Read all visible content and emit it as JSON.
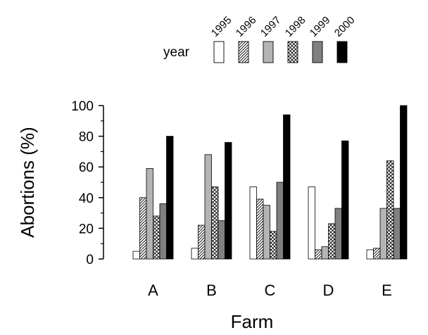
{
  "chart_data": {
    "type": "bar",
    "title": "",
    "xlabel": "Farm",
    "ylabel": "Abortions (%)",
    "ylim": [
      0,
      100
    ],
    "yticks": [
      0,
      20,
      40,
      60,
      80,
      100
    ],
    "grid": false,
    "legend_title": "year",
    "legend_position": "top",
    "categories": [
      "A",
      "B",
      "C",
      "D",
      "E"
    ],
    "series": [
      {
        "name": "1995",
        "fill": "#ffffff",
        "pattern": "none",
        "values": [
          5,
          7,
          47,
          47,
          6
        ]
      },
      {
        "name": "1996",
        "fill": "#ffffff",
        "pattern": "diagonal",
        "values": [
          40,
          22,
          39,
          6,
          7
        ]
      },
      {
        "name": "1997",
        "fill": "#b4b4b4",
        "pattern": "none",
        "values": [
          59,
          68,
          35,
          8,
          33
        ]
      },
      {
        "name": "1998",
        "fill": "#ffffff",
        "pattern": "crosshatch",
        "values": [
          28,
          47,
          18,
          23,
          64
        ]
      },
      {
        "name": "1999",
        "fill": "#808080",
        "pattern": "none",
        "values": [
          36,
          25,
          50,
          33,
          33
        ]
      },
      {
        "name": "2000",
        "fill": "#000000",
        "pattern": "none",
        "values": [
          80,
          76,
          94,
          77,
          100
        ]
      }
    ]
  }
}
